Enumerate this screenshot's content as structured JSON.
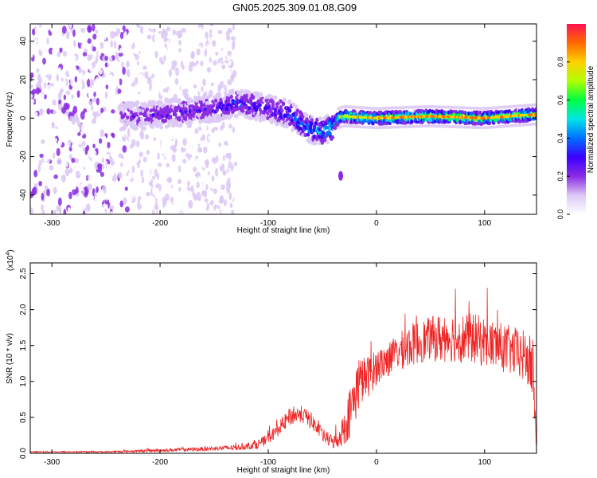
{
  "title": "GN05.2025.309.01.08.G09",
  "colors": {
    "snr_line": "#ee2222",
    "frame": "#000000"
  },
  "chart_data": [
    {
      "type": "heatmap",
      "xlabel": "Height of straight line (km)",
      "ylabel": "Frequency (Hz)",
      "xlim": [
        -320,
        148
      ],
      "ylim": [
        -50,
        49
      ],
      "xticks": [
        -300,
        -200,
        -100,
        0,
        100
      ],
      "xtick_labels": [
        "-300",
        "-200",
        "-100",
        "0",
        "100"
      ],
      "yticks": [
        -40,
        -20,
        0,
        20,
        40
      ],
      "ytick_labels": [
        "-40",
        "-20",
        "0",
        "20",
        "40"
      ],
      "colorbar": {
        "label": "Normalized spectral amplitude",
        "range": [
          0,
          1
        ],
        "ticks": [
          0.0,
          0.2,
          0.4,
          0.6,
          0.8
        ],
        "tick_labels": [
          "0.0",
          "0.2",
          "0.4",
          "0.6",
          "0.8"
        ],
        "colormap": [
          "#ffffff",
          "#dcc8f5",
          "#8a2be2",
          "#3a00ff",
          "#0070ff",
          "#00e5e5",
          "#00ff40",
          "#b0ff00",
          "#ffd000",
          "#ff6a00",
          "#ff1050"
        ]
      },
      "ridge": {
        "x": [
          -235,
          -200,
          -150,
          -130,
          -100,
          -80,
          -70,
          -60,
          -50,
          -42,
          -35,
          -30,
          0,
          50,
          100,
          148
        ],
        "frequency": [
          1,
          2,
          5,
          8,
          5,
          2,
          -3,
          -6,
          -7,
          -5,
          0,
          1,
          0,
          1,
          0,
          2
        ],
        "amplitude": [
          0.25,
          0.28,
          0.3,
          0.35,
          0.35,
          0.4,
          0.45,
          0.45,
          0.5,
          0.55,
          0.75,
          0.8,
          0.85,
          0.9,
          0.9,
          0.85
        ]
      },
      "isolated_feature": {
        "x": -33,
        "frequency": -30,
        "amplitude": 0.15
      },
      "grid": false
    },
    {
      "type": "line",
      "xlabel": "Height of straight line (km)",
      "ylabel": "SNR (10 * v/v)",
      "y_multiplier_label": "(x10",
      "y_multiplier_exp": "4",
      "y_multiplier_close": ")",
      "xlim": [
        -320,
        148
      ],
      "ylim": [
        0,
        2.65
      ],
      "xticks": [
        -300,
        -200,
        -100,
        0,
        100
      ],
      "xtick_labels": [
        "-300",
        "-200",
        "-100",
        "0",
        "100"
      ],
      "yticks": [
        0.0,
        0.5,
        1.0,
        1.5,
        2.0,
        2.5
      ],
      "ytick_labels": [
        "0.0",
        "0.5",
        "1.0",
        "1.5",
        "2.0",
        "2.5"
      ],
      "series": [
        {
          "x": [
            -320,
            -250,
            -200,
            -160,
            -130,
            -110,
            -100,
            -90,
            -80,
            -70,
            -60,
            -50,
            -40,
            -35,
            -30,
            -25,
            -20,
            -15,
            -10,
            -5,
            0,
            5,
            10,
            20,
            30,
            40,
            50,
            60,
            70,
            80,
            90,
            100,
            110,
            120,
            130,
            140,
            145,
            148
          ],
          "y": [
            0.02,
            0.02,
            0.04,
            0.06,
            0.08,
            0.12,
            0.2,
            0.35,
            0.5,
            0.55,
            0.45,
            0.25,
            0.15,
            0.2,
            0.35,
            0.55,
            0.8,
            1.0,
            1.05,
            1.1,
            1.2,
            1.25,
            1.3,
            1.4,
            1.5,
            1.55,
            1.6,
            1.6,
            1.62,
            1.6,
            1.6,
            1.55,
            1.5,
            1.45,
            1.4,
            1.3,
            1.1,
            0.1
          ],
          "noise_amplitude": [
            0.01,
            0.01,
            0.02,
            0.03,
            0.04,
            0.06,
            0.08,
            0.1,
            0.12,
            0.12,
            0.12,
            0.1,
            0.1,
            0.12,
            0.25,
            0.35,
            0.4,
            0.35,
            0.3,
            0.28,
            0.25,
            0.25,
            0.25,
            0.25,
            0.3,
            0.3,
            0.3,
            0.35,
            0.35,
            0.35,
            0.35,
            0.35,
            0.35,
            0.35,
            0.35,
            0.4,
            0.45,
            0.1
          ]
        }
      ],
      "grid": false
    }
  ]
}
